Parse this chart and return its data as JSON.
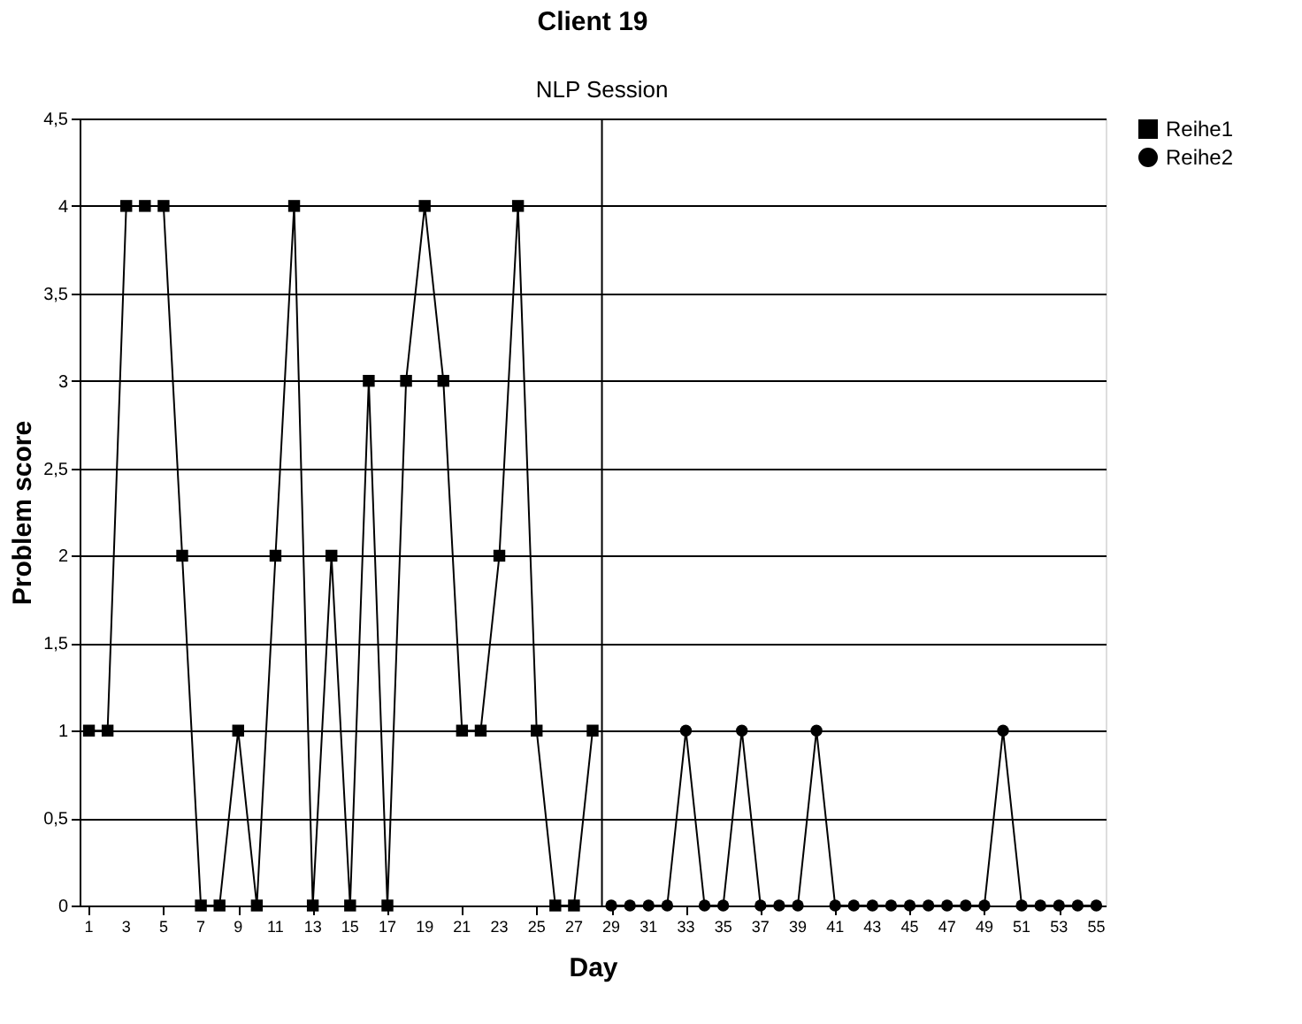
{
  "chart_data": {
    "type": "line",
    "title": "Client 19",
    "xlabel": "Day",
    "ylabel": "Problem score",
    "xlim": [
      0.5,
      55.5
    ],
    "xticks": [
      1,
      3,
      5,
      7,
      9,
      11,
      13,
      15,
      17,
      19,
      21,
      23,
      25,
      27,
      29,
      31,
      33,
      35,
      37,
      39,
      41,
      43,
      45,
      47,
      49,
      51,
      53,
      55
    ],
    "ylim": [
      0,
      4.5
    ],
    "yticks": [
      0,
      {
        "value": 0.5,
        "label": "0,5"
      },
      1,
      {
        "value": 1.5,
        "label": "1,5"
      },
      2,
      {
        "value": 2.5,
        "label": "2,5"
      },
      3,
      {
        "value": 3.5,
        "label": "3,5"
      },
      4,
      {
        "value": 4.5,
        "label": "4,5"
      }
    ],
    "grid": "y",
    "legend": "right",
    "line_style": "solid",
    "ref_lines": [
      {
        "axis": "x",
        "value": 28.5,
        "label": "NLP Session",
        "color": "#000000"
      }
    ],
    "series": [
      {
        "name": "Reihe1",
        "color": "#000000",
        "marker": "square",
        "x": [
          1,
          2,
          3,
          4,
          5,
          6,
          7,
          8,
          9,
          10,
          11,
          12,
          13,
          14,
          15,
          16,
          17,
          18,
          19,
          20,
          21,
          22,
          23,
          24,
          25,
          26,
          27,
          28
        ],
        "values": [
          1,
          1,
          4,
          4,
          4,
          2,
          0,
          0,
          1,
          0,
          2,
          4,
          0,
          2,
          0,
          3,
          0,
          3,
          4,
          3,
          1,
          1,
          2,
          4,
          1,
          0,
          0,
          1
        ]
      },
      {
        "name": "Reihe2",
        "color": "#000000",
        "marker": "circle",
        "x": [
          29,
          30,
          31,
          32,
          33,
          34,
          35,
          36,
          37,
          38,
          39,
          40,
          41,
          42,
          43,
          44,
          45,
          46,
          47,
          48,
          49,
          50,
          51,
          52,
          53,
          54,
          55
        ],
        "values": [
          0,
          0,
          0,
          0,
          1,
          0,
          0,
          1,
          0,
          0,
          0,
          1,
          0,
          0,
          0,
          0,
          0,
          0,
          0,
          0,
          0,
          1,
          0,
          0,
          0,
          0,
          0
        ]
      }
    ]
  }
}
